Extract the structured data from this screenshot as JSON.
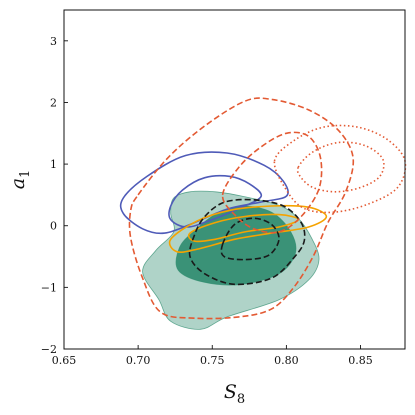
{
  "chart_data": {
    "type": "contour",
    "title": "",
    "xlabel": {
      "main": "S",
      "sub": "8"
    },
    "ylabel": {
      "main": "a",
      "sub": "1"
    },
    "xlim": [
      0.65,
      0.88
    ],
    "ylim": [
      -2.0,
      3.5
    ],
    "xticks": [
      0.65,
      0.7,
      0.75,
      0.8,
      0.85
    ],
    "xtick_labels": [
      "0.65",
      "0.70",
      "0.75",
      "0.80",
      "0.85"
    ],
    "yticks": [
      -2,
      -1,
      0,
      1,
      2,
      3
    ],
    "ytick_labels": [
      "−2",
      "−1",
      "0",
      "1",
      "2",
      "3"
    ],
    "grid": false,
    "legend": "none",
    "series": [
      {
        "style": "filled",
        "color": "#2e8b6e",
        "levels": [
          {
            "level": "outer",
            "opacity": 0.38,
            "points": [
              [
                0.724,
                0.45
              ],
              [
                0.735,
                0.55
              ],
              [
                0.752,
                0.55
              ],
              [
                0.77,
                0.48
              ],
              [
                0.795,
                0.33
              ],
              [
                0.808,
                0.12
              ],
              [
                0.817,
                -0.2
              ],
              [
                0.822,
                -0.55
              ],
              [
                0.815,
                -0.88
              ],
              [
                0.795,
                -1.2
              ],
              [
                0.76,
                -1.48
              ],
              [
                0.742,
                -1.68
              ],
              [
                0.722,
                -1.55
              ],
              [
                0.714,
                -1.2
              ],
              [
                0.703,
                -0.75
              ],
              [
                0.712,
                -0.4
              ],
              [
                0.724,
                -0.1
              ],
              [
                0.722,
                0.2
              ]
            ]
          },
          {
            "level": "inner",
            "opacity": 0.9,
            "points": [
              [
                0.738,
                -0.08
              ],
              [
                0.752,
                0.18
              ],
              [
                0.77,
                0.32
              ],
              [
                0.79,
                0.22
              ],
              [
                0.803,
                -0.1
              ],
              [
                0.806,
                -0.45
              ],
              [
                0.795,
                -0.78
              ],
              [
                0.77,
                -0.95
              ],
              [
                0.745,
                -0.92
              ],
              [
                0.727,
                -0.72
              ],
              [
                0.728,
                -0.35
              ]
            ]
          }
        ]
      },
      {
        "style": "solid",
        "color": "#4f5bb8",
        "levels": [
          {
            "level": "outer",
            "points": [
              [
                0.69,
                0.45
              ],
              [
                0.706,
                0.8
              ],
              [
                0.732,
                1.14
              ],
              [
                0.76,
                1.18
              ],
              [
                0.785,
                0.98
              ],
              [
                0.798,
                0.72
              ],
              [
                0.8,
                0.48
              ],
              [
                0.782,
                0.38
              ],
              [
                0.76,
                0.27
              ],
              [
                0.738,
                0.05
              ],
              [
                0.718,
                -0.12
              ],
              [
                0.703,
                -0.05
              ],
              [
                0.69,
                0.2
              ]
            ]
          },
          {
            "level": "inner",
            "points": [
              [
                0.722,
                0.32
              ],
              [
                0.73,
                0.58
              ],
              [
                0.745,
                0.78
              ],
              [
                0.762,
                0.8
              ],
              [
                0.775,
                0.68
              ],
              [
                0.783,
                0.48
              ],
              [
                0.77,
                0.3
              ],
              [
                0.75,
                0.1
              ],
              [
                0.733,
                -0.02
              ],
              [
                0.722,
                0.1
              ]
            ]
          }
        ]
      },
      {
        "style": "solid",
        "color": "#f5a300",
        "levels": [
          {
            "level": "outer",
            "points": [
              [
                0.722,
                -0.22
              ],
              [
                0.74,
                0.08
              ],
              [
                0.762,
                0.25
              ],
              [
                0.79,
                0.32
              ],
              [
                0.815,
                0.3
              ],
              [
                0.827,
                0.15
              ],
              [
                0.815,
                -0.02
              ],
              [
                0.79,
                -0.12
              ],
              [
                0.765,
                -0.22
              ],
              [
                0.74,
                -0.38
              ],
              [
                0.726,
                -0.42
              ]
            ]
          },
          {
            "level": "inner",
            "points": [
              [
                0.735,
                -0.12
              ],
              [
                0.752,
                0.05
              ],
              [
                0.772,
                0.15
              ],
              [
                0.795,
                0.18
              ],
              [
                0.808,
                0.1
              ],
              [
                0.795,
                -0.02
              ],
              [
                0.772,
                -0.1
              ],
              [
                0.752,
                -0.22
              ],
              [
                0.738,
                -0.25
              ]
            ]
          }
        ]
      },
      {
        "style": "dashed",
        "color": "#1a1a1a",
        "levels": [
          {
            "level": "outer",
            "points": [
              [
                0.745,
                0.15
              ],
              [
                0.758,
                0.38
              ],
              [
                0.778,
                0.42
              ],
              [
                0.798,
                0.32
              ],
              [
                0.81,
                0.05
              ],
              [
                0.812,
                -0.25
              ],
              [
                0.805,
                -0.52
              ],
              [
                0.79,
                -0.85
              ],
              [
                0.765,
                -0.95
              ],
              [
                0.745,
                -0.78
              ],
              [
                0.735,
                -0.5
              ],
              [
                0.738,
                -0.15
              ]
            ]
          },
          {
            "level": "inner",
            "points": [
              [
                0.757,
                -0.3
              ],
              [
                0.765,
                0.02
              ],
              [
                0.778,
                0.12
              ],
              [
                0.79,
                0.02
              ],
              [
                0.795,
                -0.22
              ],
              [
                0.788,
                -0.48
              ],
              [
                0.772,
                -0.55
              ],
              [
                0.758,
                -0.5
              ]
            ]
          }
        ]
      },
      {
        "style": "dashed",
        "color": "#e35a33",
        "levels": [
          {
            "level": "outer",
            "points": [
              [
                0.7,
                0.5
              ],
              [
                0.72,
                1.1
              ],
              [
                0.745,
                1.62
              ],
              [
                0.772,
                2.02
              ],
              [
                0.79,
                2.05
              ],
              [
                0.815,
                1.88
              ],
              [
                0.835,
                1.55
              ],
              [
                0.845,
                1.1
              ],
              [
                0.84,
                0.55
              ],
              [
                0.828,
                0.05
              ],
              [
                0.818,
                -0.5
              ],
              [
                0.805,
                -1.0
              ],
              [
                0.79,
                -1.35
              ],
              [
                0.768,
                -1.48
              ],
              [
                0.738,
                -1.5
              ],
              [
                0.715,
                -1.4
              ],
              [
                0.703,
                -0.85
              ],
              [
                0.695,
                -0.2
              ],
              [
                0.695,
                0.25
              ]
            ]
          },
          {
            "level": "inner",
            "points": [
              [
                0.757,
                0.5
              ],
              [
                0.768,
                0.95
              ],
              [
                0.783,
                1.28
              ],
              [
                0.8,
                1.5
              ],
              [
                0.815,
                1.45
              ],
              [
                0.823,
                1.1
              ],
              [
                0.822,
                0.6
              ],
              [
                0.81,
                0.15
              ],
              [
                0.795,
                -0.1
              ],
              [
                0.778,
                -0.05
              ],
              [
                0.765,
                0.18
              ]
            ]
          }
        ]
      },
      {
        "style": "dotted",
        "color": "#e35a33",
        "levels": [
          {
            "level": "outer",
            "points": [
              [
                0.792,
                1.05
              ],
              [
                0.805,
                1.38
              ],
              [
                0.825,
                1.6
              ],
              [
                0.848,
                1.6
              ],
              [
                0.868,
                1.4
              ],
              [
                0.88,
                1.05
              ],
              [
                0.875,
                0.62
              ],
              [
                0.855,
                0.35
              ],
              [
                0.832,
                0.22
              ],
              [
                0.812,
                0.28
              ],
              [
                0.8,
                0.58
              ]
            ]
          },
          {
            "level": "inner",
            "points": [
              [
                0.808,
                0.95
              ],
              [
                0.818,
                1.2
              ],
              [
                0.835,
                1.35
              ],
              [
                0.853,
                1.3
              ],
              [
                0.865,
                1.08
              ],
              [
                0.863,
                0.8
              ],
              [
                0.85,
                0.62
              ],
              [
                0.833,
                0.55
              ],
              [
                0.818,
                0.62
              ],
              [
                0.81,
                0.78
              ]
            ]
          }
        ]
      }
    ]
  }
}
